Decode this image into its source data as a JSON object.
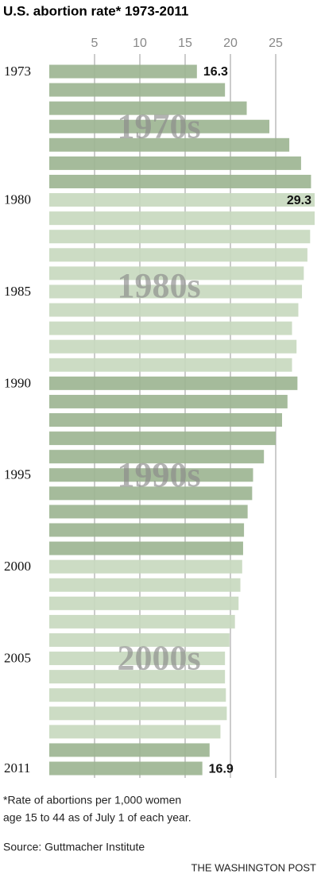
{
  "chart_data": {
    "type": "barh",
    "title": "U.S. abortion rate* 1973-2011",
    "categories": [
      "1973",
      null,
      null,
      null,
      null,
      null,
      null,
      "1980",
      null,
      null,
      null,
      null,
      "1985",
      null,
      null,
      null,
      null,
      "1990",
      null,
      null,
      null,
      null,
      "1995",
      null,
      null,
      null,
      null,
      "2000",
      null,
      null,
      null,
      null,
      "2005",
      null,
      null,
      null,
      null,
      null,
      "2011"
    ],
    "values": [
      16.3,
      19.4,
      21.8,
      24.3,
      26.5,
      27.8,
      28.9,
      29.3,
      29.3,
      28.8,
      28.5,
      28.1,
      27.9,
      27.5,
      26.8,
      27.3,
      26.8,
      27.4,
      26.3,
      25.7,
      25.0,
      23.7,
      22.5,
      22.4,
      21.9,
      21.5,
      21.4,
      21.3,
      21.1,
      20.9,
      20.5,
      19.9,
      19.4,
      19.4,
      19.5,
      19.6,
      18.9,
      17.7,
      16.9
    ],
    "value_labels": [
      "16.3",
      null,
      null,
      null,
      null,
      null,
      null,
      "29.3",
      null,
      null,
      null,
      null,
      null,
      null,
      null,
      null,
      null,
      null,
      null,
      null,
      null,
      null,
      null,
      null,
      null,
      null,
      null,
      null,
      null,
      null,
      null,
      null,
      null,
      null,
      null,
      null,
      null,
      null,
      "16.9"
    ],
    "colors": [
      "#9db592",
      "#9db592",
      "#9db592",
      "#9db592",
      "#9db592",
      "#9db592",
      "#9db592",
      "#c8d9bf",
      "#c8d9bf",
      "#c8d9bf",
      "#c8d9bf",
      "#c8d9bf",
      "#c8d9bf",
      "#c8d9bf",
      "#c8d9bf",
      "#c8d9bf",
      "#c8d9bf",
      "#9db592",
      "#9db592",
      "#9db592",
      "#9db592",
      "#9db592",
      "#9db592",
      "#9db592",
      "#9db592",
      "#9db592",
      "#9db592",
      "#c8d9bf",
      "#c8d9bf",
      "#c8d9bf",
      "#c8d9bf",
      "#c8d9bf",
      "#c8d9bf",
      "#c8d9bf",
      "#c8d9bf",
      "#c8d9bf",
      "#c8d9bf",
      "#9db592",
      "#9db592"
    ],
    "xlim": [
      0,
      30
    ],
    "xticks": [
      5,
      10,
      15,
      20,
      25
    ],
    "grid": true,
    "annotations": [
      "1970s",
      "1980s",
      "1990s",
      "2000s"
    ],
    "footnote": [
      "*Rate of abortions per 1,000 women",
      "age 15 to 44 as of July 1 of each year."
    ],
    "source": "Source: Guttmacher Institute",
    "credit": "THE WASHINGTON POST"
  }
}
